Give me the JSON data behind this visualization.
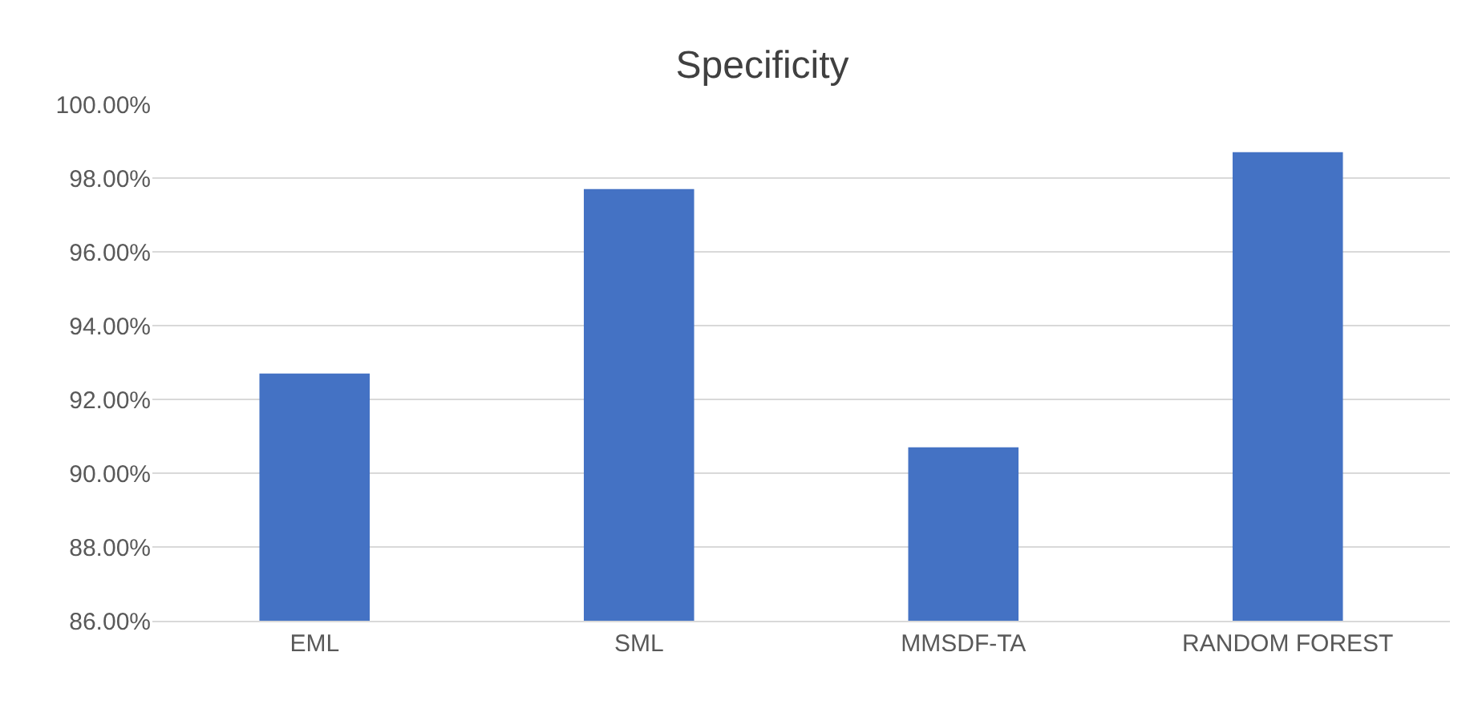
{
  "chart_data": {
    "type": "bar",
    "title": "Specificity",
    "categories": [
      "EML",
      "SML",
      "MMSDF-TA",
      "RANDOM FOREST"
    ],
    "values": [
      92.7,
      97.7,
      90.7,
      98.7
    ],
    "color": "#4472c4",
    "ylim": [
      86,
      100
    ],
    "yticks": [
      {
        "value": 86,
        "label": "86.00%"
      },
      {
        "value": 88,
        "label": "88.00%"
      },
      {
        "value": 90,
        "label": "90.00%"
      },
      {
        "value": 92,
        "label": "92.00%"
      },
      {
        "value": 94,
        "label": "94.00%"
      },
      {
        "value": 96,
        "label": "96.00%"
      },
      {
        "value": 98,
        "label": "98.00%"
      },
      {
        "value": 100,
        "label": "100.00%"
      }
    ],
    "grid": "y",
    "legend": false
  }
}
